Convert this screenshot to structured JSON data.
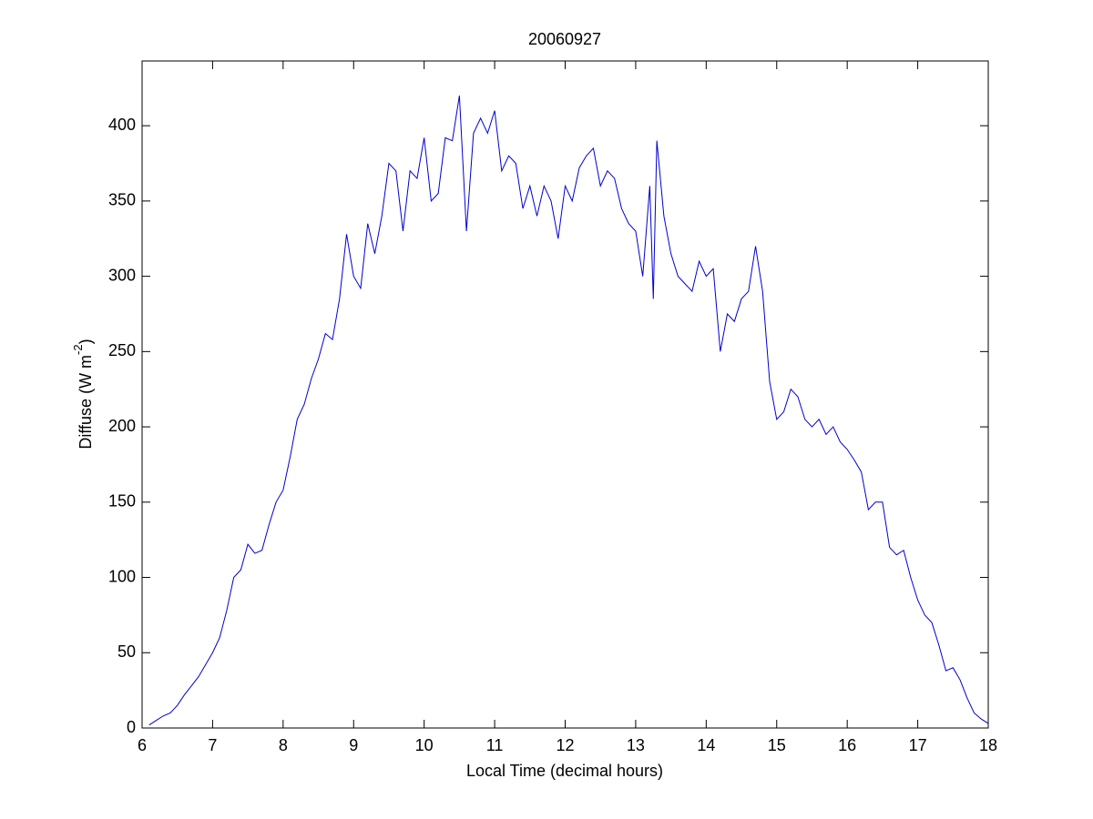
{
  "chart_data": {
    "type": "line",
    "title": "20060927",
    "xlabel": "Local Time (decimal hours)",
    "ylabel": "Diffuse (W m",
    "ylabel_sup": "-2",
    "ylabel_end": ")",
    "color": "#0000d0",
    "xlim": [
      6,
      18
    ],
    "xticks": [
      6,
      7,
      8,
      9,
      10,
      11,
      12,
      13,
      14,
      15,
      16,
      17,
      18
    ],
    "ylim": [
      0,
      443
    ],
    "yticks": [
      0,
      50,
      100,
      150,
      200,
      250,
      300,
      350,
      400
    ],
    "x": [
      6.1,
      6.2,
      6.3,
      6.4,
      6.5,
      6.6,
      6.7,
      6.8,
      6.9,
      7.0,
      7.1,
      7.2,
      7.3,
      7.4,
      7.5,
      7.6,
      7.7,
      7.8,
      7.9,
      8.0,
      8.1,
      8.2,
      8.3,
      8.4,
      8.5,
      8.6,
      8.7,
      8.8,
      8.9,
      9.0,
      9.1,
      9.2,
      9.3,
      9.4,
      9.5,
      9.6,
      9.7,
      9.8,
      9.9,
      10.0,
      10.1,
      10.2,
      10.3,
      10.4,
      10.5,
      10.6,
      10.7,
      10.8,
      10.9,
      11.0,
      11.1,
      11.2,
      11.3,
      11.4,
      11.5,
      11.6,
      11.7,
      11.8,
      11.9,
      12.0,
      12.1,
      12.2,
      12.3,
      12.4,
      12.5,
      12.6,
      12.7,
      12.8,
      12.9,
      13.0,
      13.1,
      13.2,
      13.25,
      13.3,
      13.4,
      13.5,
      13.6,
      13.7,
      13.8,
      13.9,
      14.0,
      14.1,
      14.2,
      14.3,
      14.4,
      14.5,
      14.6,
      14.7,
      14.8,
      14.9,
      15.0,
      15.1,
      15.2,
      15.3,
      15.4,
      15.5,
      15.6,
      15.7,
      15.8,
      15.9,
      16.0,
      16.1,
      16.2,
      16.3,
      16.4,
      16.5,
      16.6,
      16.7,
      16.8,
      16.9,
      17.0,
      17.1,
      17.2,
      17.3,
      17.4,
      17.5,
      17.6,
      17.7,
      17.8,
      17.9,
      18.0
    ],
    "values": [
      2,
      5,
      8,
      10,
      15,
      22,
      28,
      34,
      42,
      50,
      60,
      78,
      100,
      105,
      122,
      116,
      118,
      135,
      150,
      158,
      180,
      205,
      215,
      232,
      245,
      262,
      258,
      285,
      328,
      300,
      292,
      335,
      315,
      340,
      375,
      370,
      330,
      370,
      365,
      392,
      350,
      355,
      392,
      390,
      420,
      330,
      395,
      405,
      395,
      410,
      370,
      380,
      375,
      345,
      360,
      340,
      360,
      350,
      325,
      360,
      350,
      372,
      380,
      385,
      360,
      370,
      365,
      345,
      335,
      330,
      300,
      360,
      285,
      390,
      340,
      315,
      300,
      295,
      290,
      310,
      300,
      305,
      250,
      275,
      270,
      285,
      290,
      320,
      290,
      230,
      205,
      210,
      225,
      220,
      205,
      200,
      205,
      195,
      200,
      190,
      185,
      178,
      170,
      145,
      150,
      150,
      120,
      115,
      118,
      100,
      85,
      75,
      70,
      55,
      38,
      40,
      32,
      20,
      10,
      6,
      3
    ]
  }
}
